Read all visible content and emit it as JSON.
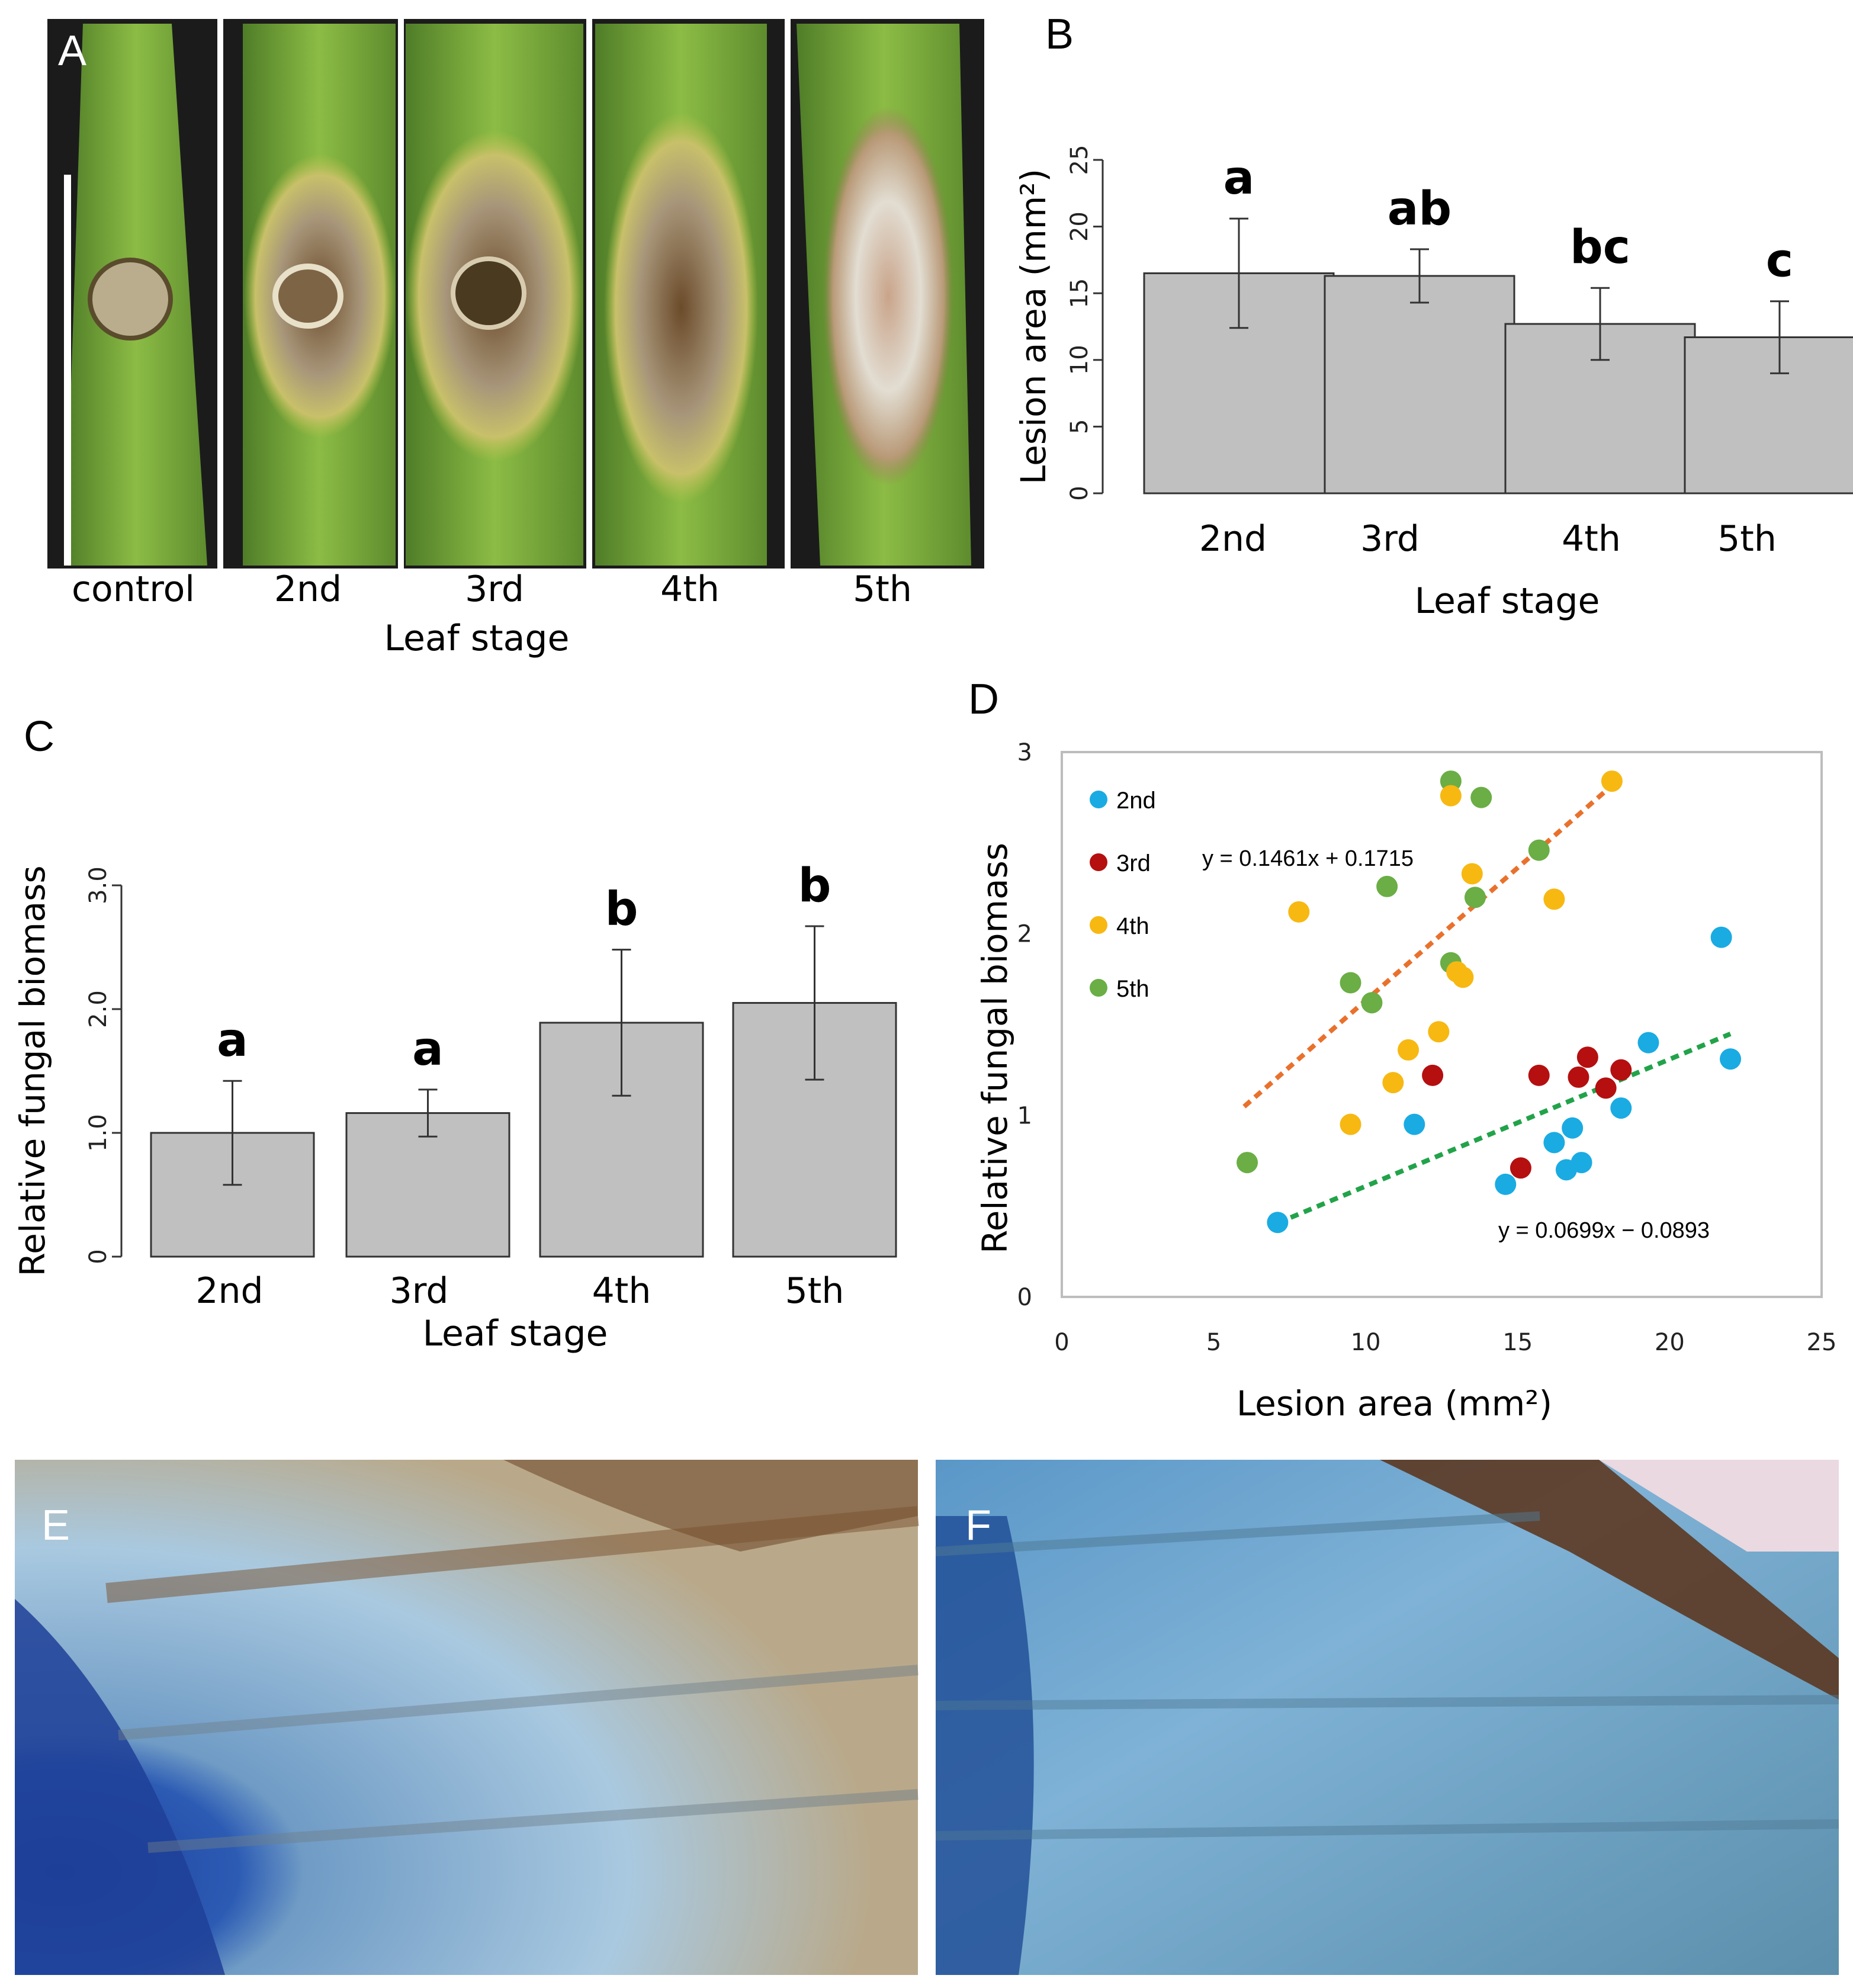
{
  "panel_letters": {
    "A": "A",
    "B": "B",
    "C": "C",
    "D": "D",
    "E": "E",
    "F": "F"
  },
  "panelA": {
    "labels": [
      "control",
      "2nd",
      "3rd",
      "4th",
      "5th"
    ],
    "xlabel": "Leaf stage"
  },
  "colors": {
    "bar_fill": "#c0c0c0",
    "s2nd": "#1aabe2",
    "s3rd": "#b50f10",
    "s4th": "#f7b812",
    "s5th": "#6aae45",
    "trend_orange": "#e9712c",
    "trend_green": "#22a34a"
  },
  "chart_data": [
    {
      "id": "B",
      "type": "bar",
      "categories": [
        "2nd",
        "3rd",
        "4th",
        "5th"
      ],
      "values": [
        16.5,
        16.3,
        12.7,
        11.7
      ],
      "errors": [
        4.1,
        2.0,
        2.7,
        2.7
      ],
      "significance": [
        "a",
        "ab",
        "bc",
        "c"
      ],
      "xlabel": "Leaf stage",
      "ylabel": "Lesion area (mm²)",
      "ylim": [
        0,
        25
      ],
      "yticks": [
        "0",
        "5",
        "10",
        "15",
        "20",
        "25"
      ]
    },
    {
      "id": "C",
      "type": "bar",
      "categories": [
        "2nd",
        "3rd",
        "4th",
        "5th"
      ],
      "values": [
        1.0,
        1.16,
        1.89,
        2.05
      ],
      "errors": [
        0.42,
        0.19,
        0.59,
        0.62
      ],
      "significance": [
        "a",
        "a",
        "b",
        "b"
      ],
      "xlabel": "Leaf stage",
      "ylabel": "Relative fungal biomass",
      "ylim": [
        0,
        3
      ],
      "yticks": [
        "0",
        "1.0",
        "2.0",
        "3.0"
      ]
    },
    {
      "id": "D",
      "type": "scatter",
      "xlabel": "Lesion area (mm²)",
      "ylabel": "Relative fungal biomass",
      "xlim": [
        0,
        25
      ],
      "ylim": [
        0,
        3
      ],
      "xticks": [
        "0",
        "5",
        "10",
        "15",
        "20",
        "25"
      ],
      "yticks": [
        "0",
        "1",
        "2",
        "3"
      ],
      "series": [
        {
          "name": "2nd",
          "points": [
            [
              7.1,
              0.41
            ],
            [
              11.6,
              0.95
            ],
            [
              14.6,
              0.62
            ],
            [
              16.2,
              0.85
            ],
            [
              16.6,
              0.7
            ],
            [
              16.8,
              0.93
            ],
            [
              17.1,
              0.74
            ],
            [
              18.4,
              1.04
            ],
            [
              19.3,
              1.4
            ],
            [
              21.7,
              1.98
            ],
            [
              22.0,
              1.31
            ]
          ]
        },
        {
          "name": "3rd",
          "points": [
            [
              12.2,
              1.22
            ],
            [
              15.1,
              0.71
            ],
            [
              15.7,
              1.22
            ],
            [
              17.0,
              1.21
            ],
            [
              17.3,
              1.32
            ],
            [
              17.9,
              1.15
            ],
            [
              18.4,
              1.25
            ]
          ]
        },
        {
          "name": "4th",
          "points": [
            [
              7.8,
              2.12
            ],
            [
              9.5,
              0.95
            ],
            [
              10.9,
              1.18
            ],
            [
              11.4,
              1.36
            ],
            [
              12.4,
              1.46
            ],
            [
              12.8,
              2.76
            ],
            [
              13.0,
              1.79
            ],
            [
              13.2,
              1.76
            ],
            [
              13.5,
              2.33
            ],
            [
              16.2,
              2.19
            ],
            [
              18.1,
              2.84
            ]
          ]
        },
        {
          "name": "5th",
          "points": [
            [
              6.1,
              0.74
            ],
            [
              9.5,
              1.73
            ],
            [
              10.2,
              1.62
            ],
            [
              10.7,
              2.26
            ],
            [
              12.8,
              1.84
            ],
            [
              12.8,
              2.84
            ],
            [
              13.6,
              2.2
            ],
            [
              13.8,
              2.75
            ],
            [
              15.7,
              2.46
            ]
          ]
        }
      ],
      "trendlines": [
        {
          "label": "y = 0.1461x + 0.1715",
          "x_range": [
            6.0,
            18.1
          ],
          "slope": 0.1461,
          "intercept": 0.1715
        },
        {
          "label": "y = 0.0699x − 0.0893",
          "x_range": [
            7.1,
            22.0
          ],
          "slope": 0.0699,
          "intercept": -0.0893
        }
      ]
    }
  ]
}
